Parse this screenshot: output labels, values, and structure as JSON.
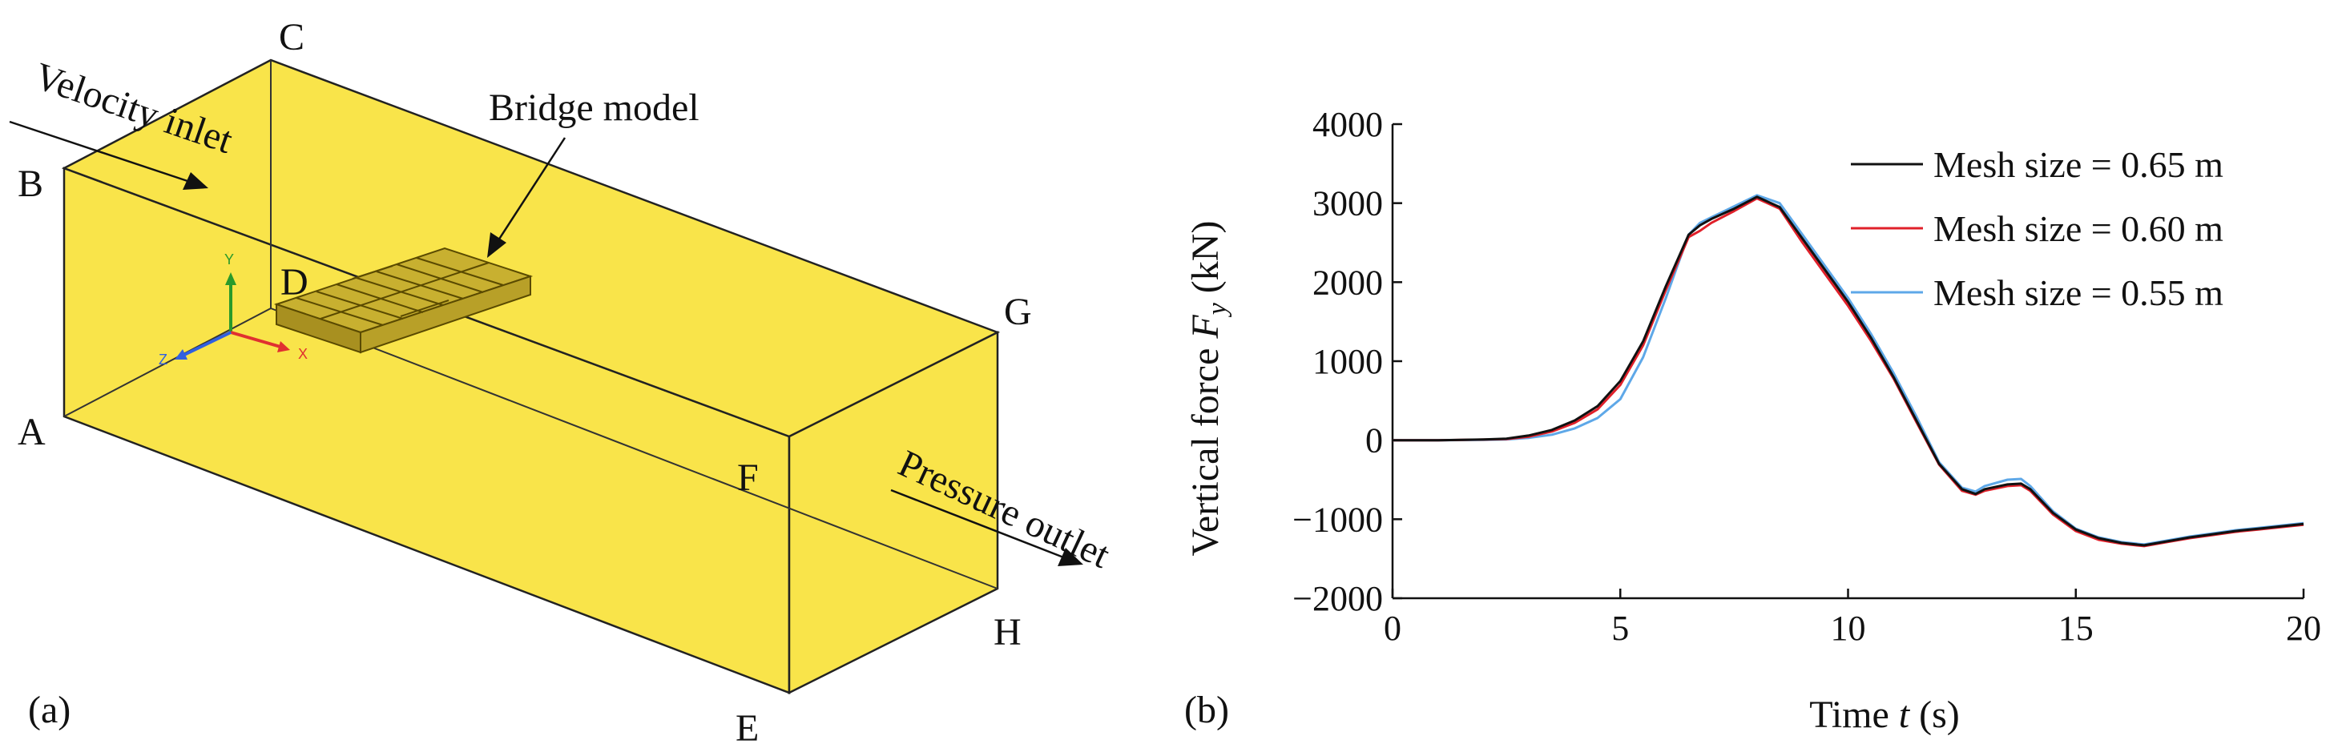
{
  "panel_a": {
    "label": "(a)",
    "vertices": {
      "A": "A",
      "B": "B",
      "C": "C",
      "D": "D",
      "E": "E",
      "F": "F",
      "G": "G",
      "H": "H"
    },
    "inlet_label": "Velocity inlet",
    "outlet_label": "Pressure outlet",
    "model_label": "Bridge model",
    "box_color": "#f9e44a",
    "edge_color": "#222222",
    "axis_triad": {
      "x": "X",
      "y": "Y",
      "z": "Z",
      "x_color": "#e03030",
      "y_color": "#2a9a2a",
      "z_color": "#3060e0"
    }
  },
  "panel_b": {
    "label": "(b)"
  },
  "chart_data": {
    "type": "line",
    "title": "",
    "xlabel_prefix": "Time ",
    "xlabel_var": "t",
    "xlabel_unit": " (s)",
    "ylabel_prefix": "Vertical force ",
    "ylabel_var": "F",
    "ylabel_sub": "y",
    "ylabel_unit": " (kN)",
    "xlim": [
      0,
      20
    ],
    "ylim": [
      -2000,
      4000
    ],
    "xticks": [
      "0",
      "5",
      "10",
      "15",
      "20"
    ],
    "yticks": [
      "−2000",
      "−1000",
      "0",
      "1000",
      "2000",
      "3000",
      "4000"
    ],
    "xtick_values": [
      0,
      5,
      10,
      15,
      20
    ],
    "ytick_values": [
      -2000,
      -1000,
      0,
      1000,
      2000,
      3000,
      4000
    ],
    "legend_position": "top-right",
    "series": [
      {
        "name": "Mesh size = 0.65 m",
        "color": "#111111",
        "x": [
          0,
          1,
          2,
          2.5,
          3,
          3.5,
          4,
          4.5,
          5,
          5.5,
          6,
          6.5,
          6.75,
          7,
          7.5,
          8,
          8.5,
          9,
          9.5,
          10,
          10.5,
          11,
          11.5,
          12,
          12.5,
          12.8,
          13,
          13.5,
          13.8,
          14,
          14.5,
          15,
          15.5,
          16,
          16.5,
          17,
          17.5,
          18,
          18.5,
          19,
          19.5,
          20
        ],
        "y": [
          0,
          0,
          10,
          20,
          60,
          130,
          250,
          430,
          750,
          1250,
          1950,
          2600,
          2720,
          2800,
          2930,
          3080,
          2950,
          2550,
          2150,
          1750,
          1300,
          800,
          250,
          -300,
          -620,
          -680,
          -620,
          -560,
          -550,
          -620,
          -920,
          -1130,
          -1240,
          -1300,
          -1330,
          -1280,
          -1230,
          -1190,
          -1150,
          -1120,
          -1090,
          -1060
        ]
      },
      {
        "name": "Mesh size = 0.60 m",
        "color": "#e0202a",
        "x": [
          0,
          1,
          2,
          2.5,
          3,
          3.5,
          4,
          4.5,
          5,
          5.5,
          6,
          6.5,
          6.75,
          7,
          7.5,
          8,
          8.5,
          9,
          9.5,
          10,
          10.5,
          11,
          11.5,
          12,
          12.5,
          12.8,
          13,
          13.5,
          13.8,
          14,
          14.5,
          15,
          15.5,
          16,
          16.5,
          17,
          17.5,
          18,
          18.5,
          19,
          19.5,
          20
        ],
        "y": [
          0,
          0,
          8,
          15,
          45,
          110,
          220,
          390,
          700,
          1200,
          1900,
          2570,
          2650,
          2750,
          2900,
          3060,
          2930,
          2500,
          2100,
          1700,
          1260,
          780,
          230,
          -310,
          -640,
          -690,
          -640,
          -580,
          -570,
          -640,
          -940,
          -1150,
          -1260,
          -1310,
          -1340,
          -1290,
          -1240,
          -1200,
          -1160,
          -1130,
          -1100,
          -1070
        ]
      },
      {
        "name": "Mesh size = 0.55 m",
        "color": "#5ea8e8",
        "x": [
          0,
          1,
          2,
          2.5,
          3,
          3.5,
          4,
          4.5,
          5,
          5.5,
          6,
          6.5,
          6.75,
          7,
          7.5,
          8,
          8.5,
          9,
          9.5,
          10,
          10.5,
          11,
          11.5,
          12,
          12.5,
          12.8,
          13,
          13.5,
          13.8,
          14,
          14.5,
          15,
          15.5,
          16,
          16.5,
          17,
          17.5,
          18,
          18.5,
          19,
          19.5,
          20
        ],
        "y": [
          0,
          0,
          5,
          10,
          30,
          70,
          150,
          280,
          520,
          1050,
          1800,
          2600,
          2750,
          2820,
          2960,
          3100,
          3000,
          2600,
          2200,
          1800,
          1350,
          850,
          300,
          -280,
          -600,
          -650,
          -580,
          -500,
          -490,
          -580,
          -900,
          -1120,
          -1230,
          -1290,
          -1320,
          -1270,
          -1220,
          -1180,
          -1140,
          -1110,
          -1080,
          -1050
        ]
      }
    ]
  }
}
